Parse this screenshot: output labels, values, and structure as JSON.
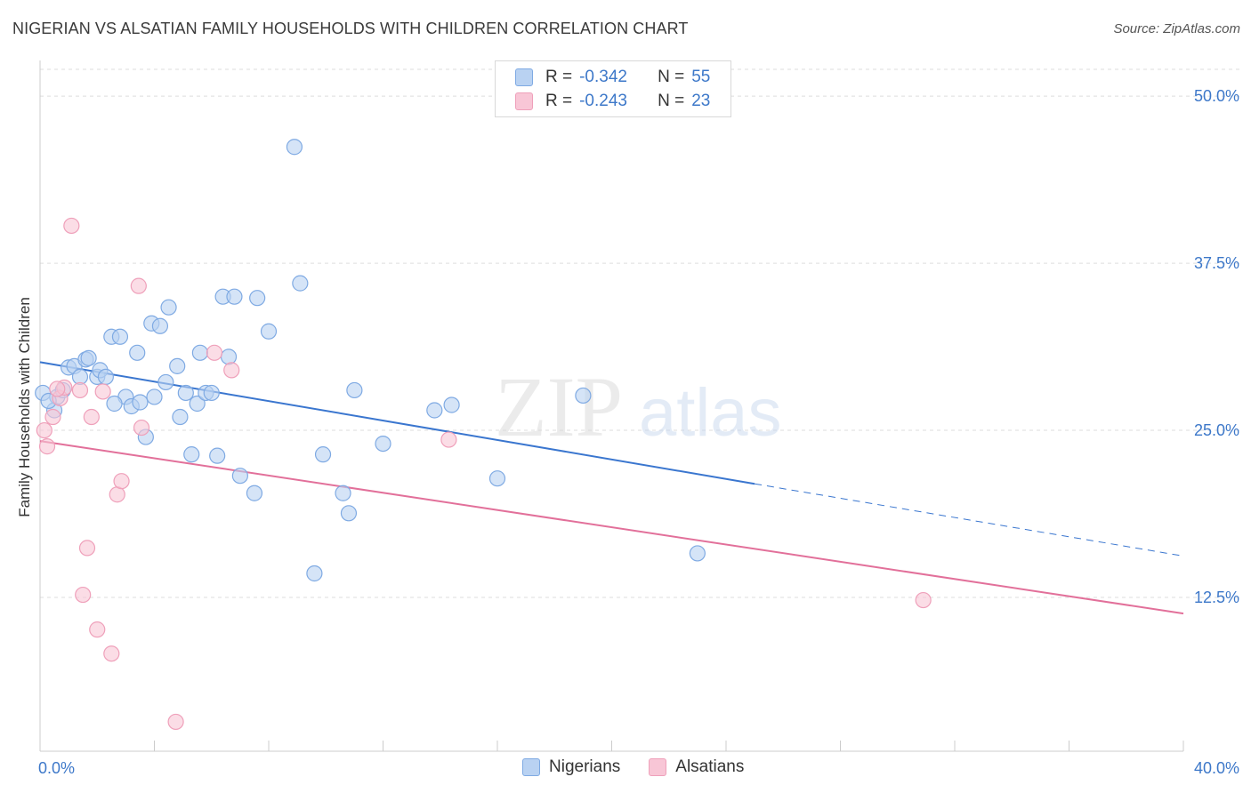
{
  "title": "NIGERIAN VS ALSATIAN FAMILY HOUSEHOLDS WITH CHILDREN CORRELATION CHART",
  "source": "Source: ZipAtlas.com",
  "watermark": {
    "zip": "ZIP",
    "atlas": "atlas"
  },
  "legend": {
    "nigerians": {
      "r_label": "R =",
      "r_value": "-0.342",
      "n_label": "N =",
      "n_value": "55"
    },
    "alsatians": {
      "r_label": "R =",
      "r_value": "-0.243",
      "n_label": "N =",
      "n_value": "23"
    }
  },
  "bottom_legend": {
    "nigerians": "Nigerians",
    "alsatians": "Alsatians"
  },
  "colors": {
    "nigerians_fill": "#b9d2f2",
    "nigerians_stroke": "#7faae3",
    "nigerians_line": "#3a76cf",
    "alsatians_fill": "#f8c6d6",
    "alsatians_stroke": "#efa0ba",
    "alsatians_line": "#e2709a",
    "tick_label": "#3d78c9",
    "grid": "#dedede"
  },
  "chart_data": {
    "type": "scatter",
    "title": "NIGERIAN VS ALSATIAN FAMILY HOUSEHOLDS WITH CHILDREN CORRELATION CHART",
    "xlabel": "",
    "ylabel": "Family Households with Children",
    "xlim": [
      0,
      40
    ],
    "ylim": [
      1,
      52
    ],
    "x_tick_labels": [
      "0.0%",
      "40.0%"
    ],
    "y_ticks": [
      12.5,
      25.0,
      37.5,
      50.0
    ],
    "y_tick_labels": [
      "12.5%",
      "25.0%",
      "37.5%",
      "50.0%"
    ],
    "grid": true,
    "legend_position": "top-center",
    "series": [
      {
        "name": "Nigerians",
        "points": [
          [
            0.1,
            27.8
          ],
          [
            0.5,
            26.5
          ],
          [
            0.6,
            27.5
          ],
          [
            0.8,
            28.0
          ],
          [
            1.0,
            29.7
          ],
          [
            1.2,
            29.8
          ],
          [
            1.4,
            29.0
          ],
          [
            1.6,
            30.3
          ],
          [
            1.7,
            30.4
          ],
          [
            2.0,
            29.0
          ],
          [
            2.1,
            29.5
          ],
          [
            2.3,
            29.0
          ],
          [
            2.5,
            32.0
          ],
          [
            2.8,
            32.0
          ],
          [
            3.0,
            27.5
          ],
          [
            2.6,
            27.0
          ],
          [
            3.2,
            26.8
          ],
          [
            3.4,
            30.8
          ],
          [
            3.5,
            27.1
          ],
          [
            3.7,
            24.5
          ],
          [
            3.9,
            33.0
          ],
          [
            4.0,
            27.5
          ],
          [
            4.2,
            32.8
          ],
          [
            4.4,
            28.6
          ],
          [
            4.5,
            34.2
          ],
          [
            4.8,
            29.8
          ],
          [
            4.9,
            26.0
          ],
          [
            5.1,
            27.8
          ],
          [
            5.3,
            23.2
          ],
          [
            5.5,
            27.0
          ],
          [
            5.6,
            30.8
          ],
          [
            5.8,
            27.8
          ],
          [
            6.0,
            27.8
          ],
          [
            6.2,
            23.1
          ],
          [
            6.4,
            35.0
          ],
          [
            6.6,
            30.5
          ],
          [
            6.8,
            35.0
          ],
          [
            7.0,
            21.6
          ],
          [
            7.5,
            20.3
          ],
          [
            7.6,
            34.9
          ],
          [
            8.0,
            32.4
          ],
          [
            8.9,
            46.2
          ],
          [
            9.1,
            36.0
          ],
          [
            9.6,
            14.3
          ],
          [
            9.9,
            23.2
          ],
          [
            10.6,
            20.3
          ],
          [
            10.8,
            18.8
          ],
          [
            11.0,
            28.0
          ],
          [
            12.0,
            24.0
          ],
          [
            13.8,
            26.5
          ],
          [
            14.4,
            26.9
          ],
          [
            16.0,
            21.4
          ],
          [
            19.0,
            27.6
          ],
          [
            23.0,
            15.8
          ],
          [
            0.3,
            27.2
          ]
        ],
        "trend": {
          "x": [
            0,
            25,
            40
          ],
          "y": [
            30.1,
            21.0,
            15.6
          ],
          "solid_until": 25
        }
      },
      {
        "name": "Alsatians",
        "points": [
          [
            0.15,
            25.0
          ],
          [
            0.25,
            23.8
          ],
          [
            0.45,
            26.0
          ],
          [
            0.7,
            27.4
          ],
          [
            0.85,
            28.2
          ],
          [
            1.1,
            40.3
          ],
          [
            1.4,
            28.0
          ],
          [
            1.5,
            12.7
          ],
          [
            1.65,
            16.2
          ],
          [
            1.8,
            26.0
          ],
          [
            2.0,
            10.1
          ],
          [
            2.2,
            27.9
          ],
          [
            2.5,
            8.3
          ],
          [
            2.7,
            20.2
          ],
          [
            2.85,
            21.2
          ],
          [
            3.45,
            35.8
          ],
          [
            3.55,
            25.2
          ],
          [
            4.75,
            3.2
          ],
          [
            6.1,
            30.8
          ],
          [
            6.7,
            29.5
          ],
          [
            14.3,
            24.3
          ],
          [
            30.9,
            12.3
          ],
          [
            0.6,
            28.1
          ]
        ],
        "trend": {
          "x": [
            0,
            40
          ],
          "y": [
            24.2,
            11.3
          ]
        }
      }
    ]
  }
}
